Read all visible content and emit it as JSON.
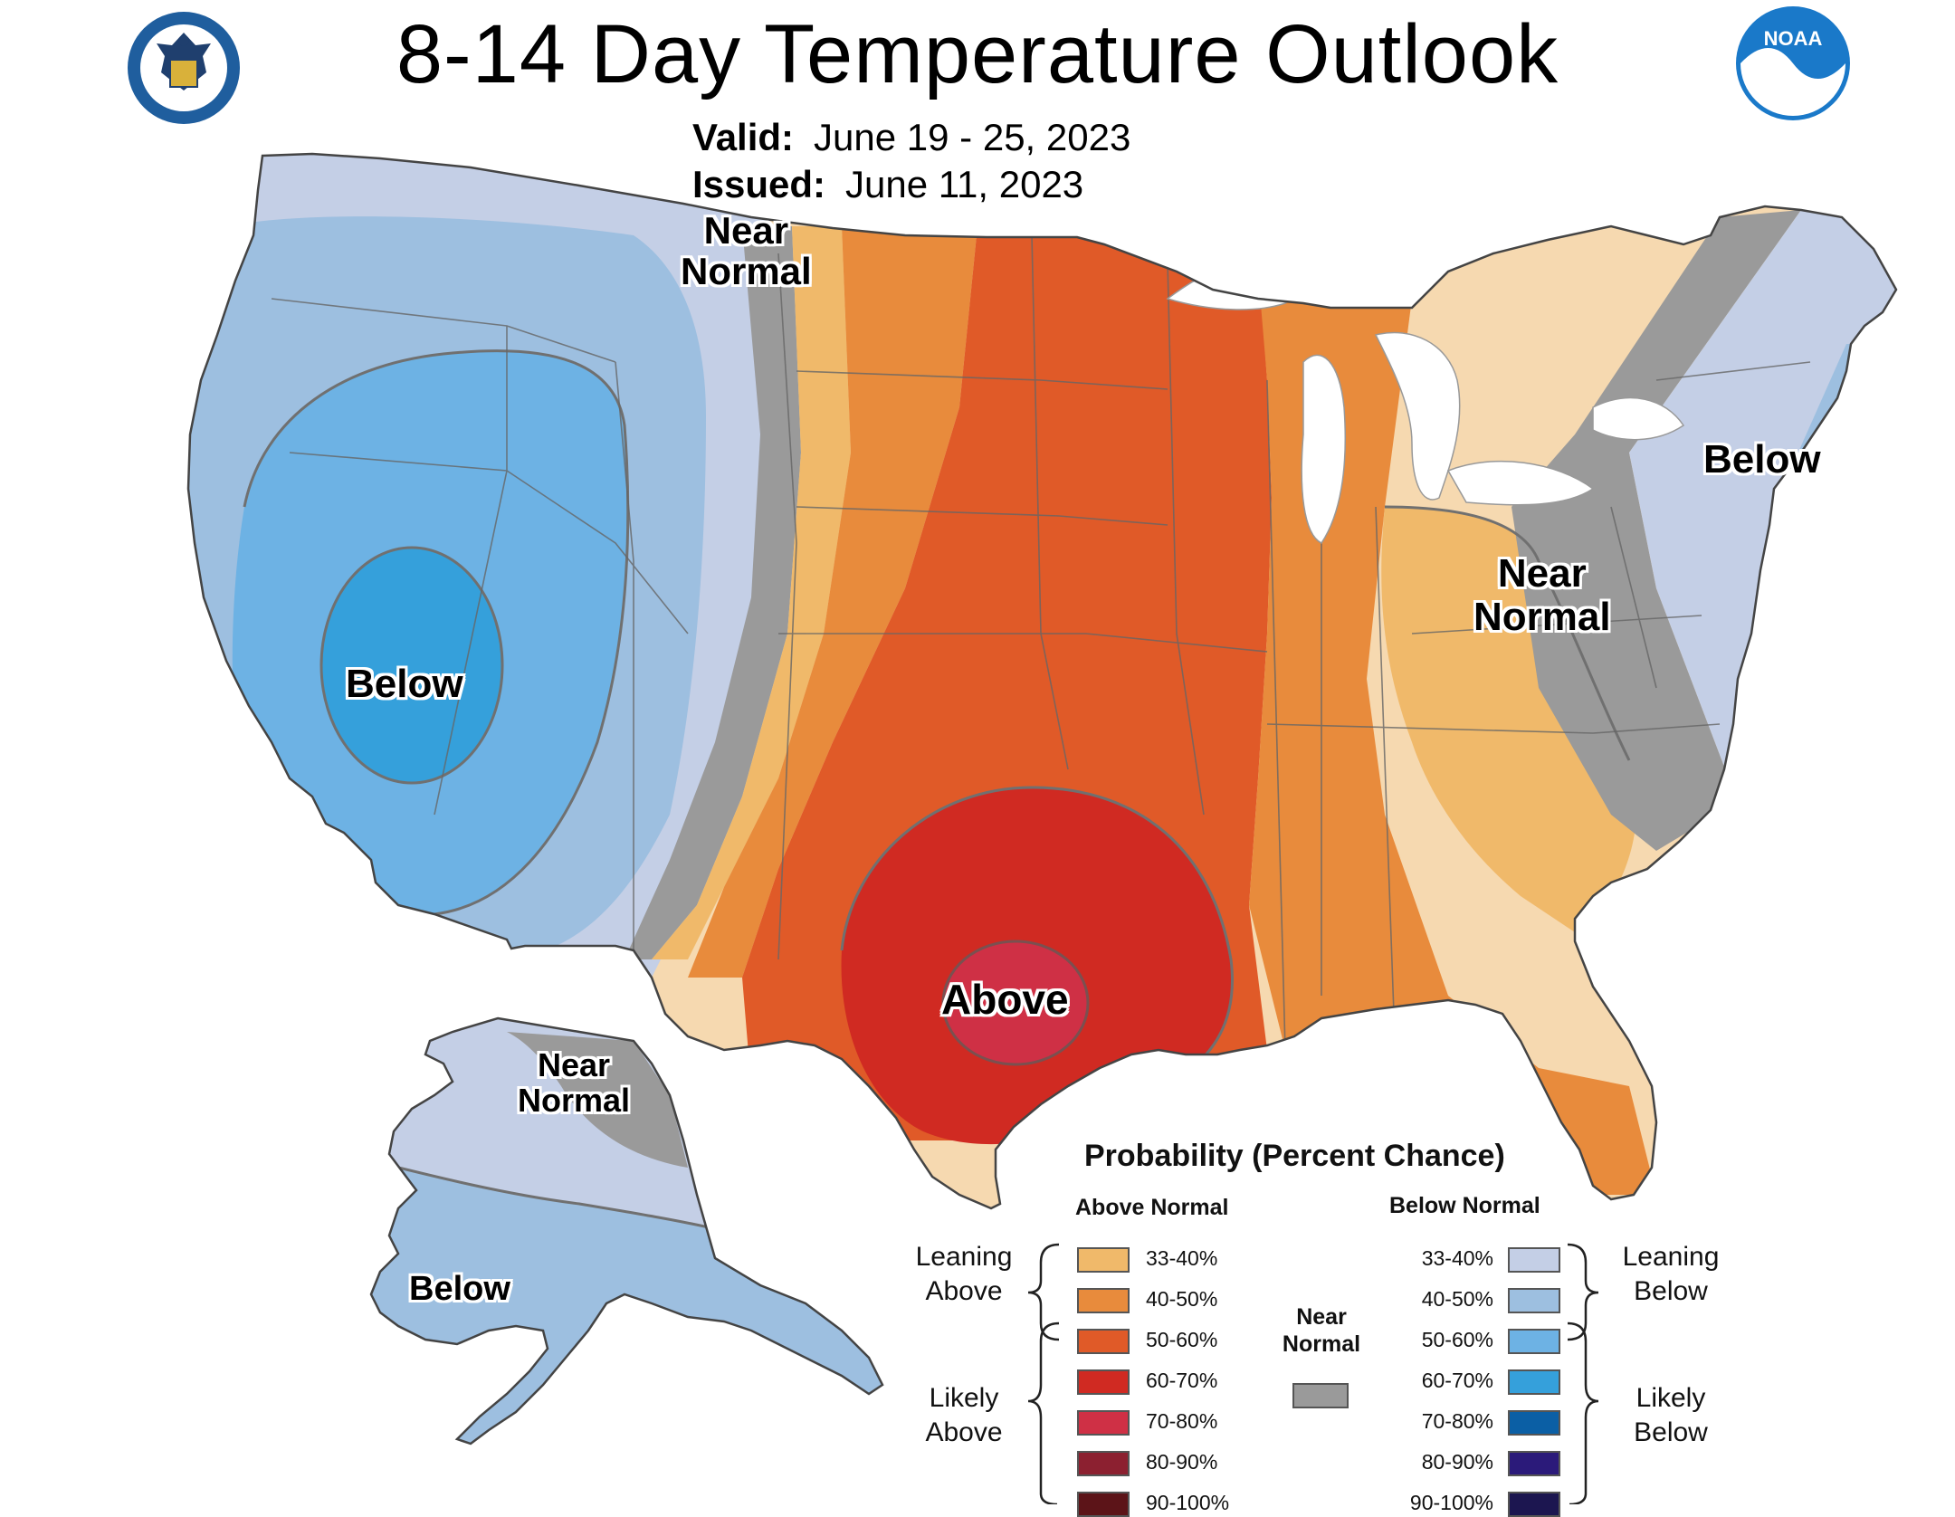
{
  "header": {
    "title": "8-14 Day Temperature Outlook",
    "valid_label": "Valid:",
    "valid_value": "June 19 - 25, 2023",
    "issued_label": "Issued:",
    "issued_value": "June 11, 2023"
  },
  "logos": {
    "left": "doc-seal-icon",
    "right": "noaa-logo-icon",
    "right_text": "NOAA"
  },
  "map_labels": {
    "near_normal_north": "Near\nNormal",
    "below_west": "Below",
    "near_normal_east": "Near\nNormal",
    "below_northeast": "Below",
    "above_south": "Above",
    "alaska_near_normal": "Near\nNormal",
    "alaska_below": "Below"
  },
  "legend": {
    "title": "Probability (Percent Chance)",
    "above_title": "Above Normal",
    "below_title": "Below Normal",
    "near_normal_label": "Near\nNormal",
    "near_normal_color": "#9a9a9a",
    "leaning_above": "Leaning\nAbove",
    "likely_above": "Likely\nAbove",
    "leaning_below": "Leaning\nBelow",
    "likely_below": "Likely\nBelow",
    "above": [
      {
        "label": "33-40%",
        "color": "#f0b96a"
      },
      {
        "label": "40-50%",
        "color": "#e88b3c"
      },
      {
        "label": "50-60%",
        "color": "#e05a28"
      },
      {
        "label": "60-70%",
        "color": "#d02a22"
      },
      {
        "label": "70-80%",
        "color": "#cf3045"
      },
      {
        "label": "80-90%",
        "color": "#8c2030"
      },
      {
        "label": "90-100%",
        "color": "#5c1418"
      }
    ],
    "below": [
      {
        "label": "33-40%",
        "color": "#c4cfe6"
      },
      {
        "label": "40-50%",
        "color": "#9dbfe0"
      },
      {
        "label": "50-60%",
        "color": "#6db2e4"
      },
      {
        "label": "60-70%",
        "color": "#35a0db"
      },
      {
        "label": "70-80%",
        "color": "#0b5fa5"
      },
      {
        "label": "80-90%",
        "color": "#2b1a7a"
      },
      {
        "label": "90-100%",
        "color": "#1c1650"
      }
    ]
  },
  "colors": {
    "land_white": "#ffffff",
    "boundary": "#555555"
  }
}
